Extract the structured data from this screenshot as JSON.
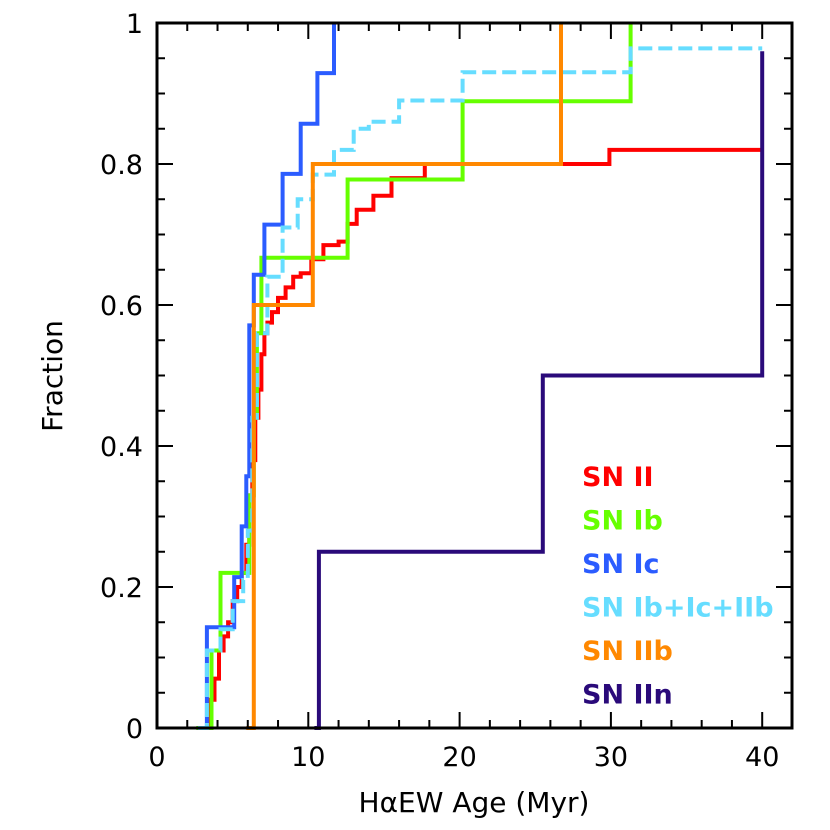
{
  "chart_data": {
    "type": "line",
    "step": true,
    "title": "",
    "xlabel": "HαEW Age (Myr)",
    "ylabel": "Fraction",
    "xlim": [
      0,
      42
    ],
    "ylim": [
      0,
      1
    ],
    "xticks": [
      0,
      10,
      20,
      30,
      40
    ],
    "yticks": [
      0,
      0.2,
      0.4,
      0.6,
      0.8,
      1
    ],
    "xtick_labels": [
      "0",
      "10",
      "20",
      "30",
      "40"
    ],
    "ytick_labels": [
      "0",
      "0.2",
      "0.4",
      "0.6",
      "0.8",
      "1"
    ],
    "x_minor_step": 2,
    "y_minor_step": 0.05,
    "grid": false,
    "legend_position": "bottom-right",
    "series": [
      {
        "name": "SN II",
        "color": "#ff0000",
        "dash": false,
        "x": [
          3.2,
          3.5,
          3.8,
          4.1,
          4.4,
          4.7,
          5.0,
          5.3,
          5.6,
          5.9,
          6.1,
          6.3,
          6.5,
          6.7,
          6.9,
          7.1,
          7.3,
          7.6,
          8.0,
          8.5,
          9.0,
          9.5,
          10.2,
          11.0,
          12.0,
          12.6,
          13.2,
          13.7,
          14.3,
          15.5,
          17.7,
          26.9,
          29.9,
          40.0
        ],
        "y": [
          0,
          0.04,
          0.07,
          0.11,
          0.13,
          0.15,
          0.18,
          0.2,
          0.22,
          0.26,
          0.33,
          0.38,
          0.44,
          0.48,
          0.53,
          0.56,
          0.575,
          0.59,
          0.61,
          0.625,
          0.64,
          0.645,
          0.665,
          0.685,
          0.69,
          0.715,
          0.735,
          0.735,
          0.755,
          0.78,
          0.8,
          0.8,
          0.82,
          0.82
        ]
      },
      {
        "name": "SN Ib",
        "color": "#66ff00",
        "dash": false,
        "x": [
          2.6,
          3.6,
          4.2,
          5.5,
          6.1,
          6.4,
          6.6,
          6.9,
          12.6,
          20.2,
          31.3,
          31.3
        ],
        "y": [
          0,
          0.11,
          0.22,
          0.22,
          0.33,
          0.44,
          0.56,
          0.667,
          0.778,
          0.889,
          1.0,
          1.0
        ]
      },
      {
        "name": "SN Ic",
        "color": "#2b5cff",
        "dash": false,
        "x": [
          2.8,
          3.3,
          4.5,
          5.1,
          5.6,
          5.9,
          6.1,
          6.4,
          7.1,
          8.3,
          9.5,
          10.6,
          11.7,
          11.7
        ],
        "y": [
          0,
          0.143,
          0.143,
          0.214,
          0.286,
          0.357,
          0.571,
          0.643,
          0.714,
          0.786,
          0.857,
          0.929,
          1.0,
          1.0
        ]
      },
      {
        "name": "SN Ib+Ic+IIb",
        "color": "#66ddff",
        "dash": true,
        "x": [
          2.7,
          3.3,
          4.2,
          5.0,
          5.7,
          6.0,
          6.3,
          6.6,
          7.3,
          8.3,
          9.3,
          10.3,
          11.7,
          13.0,
          14.0,
          16.0,
          20.2,
          31.3,
          40.0
        ],
        "y": [
          0,
          0.11,
          0.14,
          0.18,
          0.21,
          0.28,
          0.44,
          0.56,
          0.64,
          0.71,
          0.75,
          0.785,
          0.82,
          0.85,
          0.86,
          0.89,
          0.93,
          0.964,
          0.964
        ]
      },
      {
        "name": "SN IIb",
        "color": "#ff8800",
        "dash": false,
        "x": [
          5.9,
          6.4,
          10.3,
          26.7,
          26.7
        ],
        "y": [
          0,
          0.6,
          0.8,
          1.0,
          1.0
        ]
      },
      {
        "name": "SN IIn",
        "color": "#2a0a7a",
        "dash": false,
        "x": [
          10.4,
          10.7,
          25.5,
          40.0,
          40.0
        ],
        "y": [
          0,
          0.25,
          0.5,
          0.75,
          0.96
        ]
      }
    ]
  }
}
